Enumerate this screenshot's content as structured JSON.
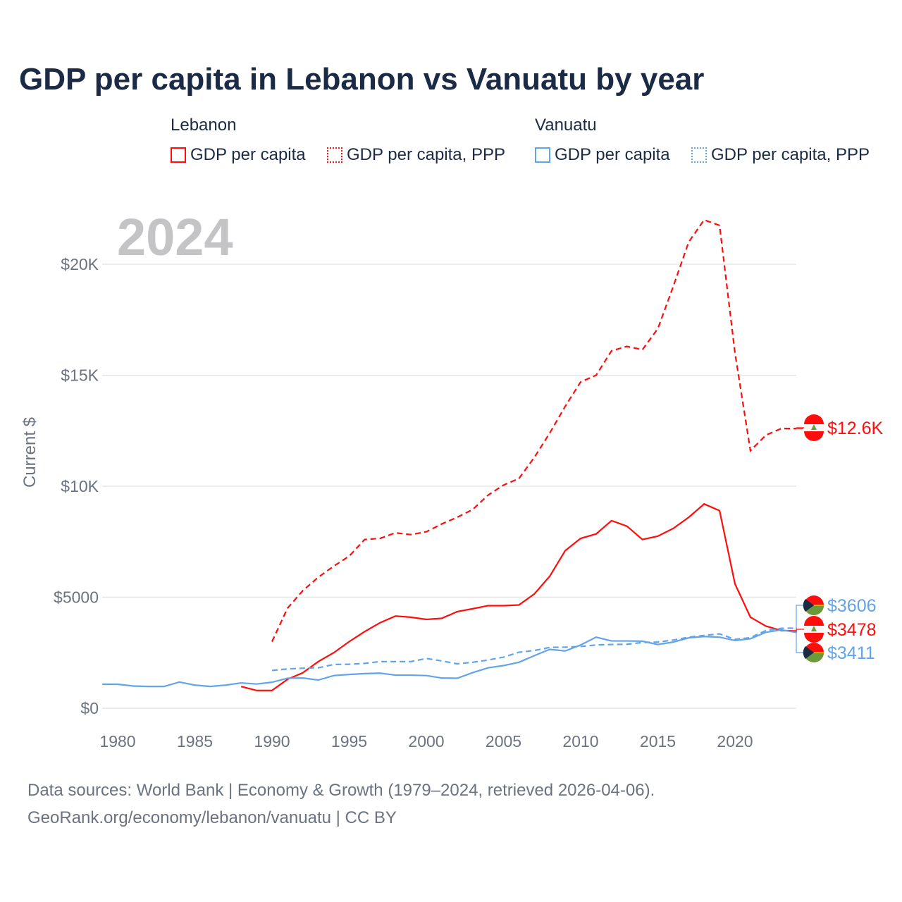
{
  "title": "GDP per capita in Lebanon vs Vanuatu by year",
  "legend": {
    "groups": [
      {
        "name": "Lebanon",
        "items": [
          {
            "label": "GDP per capita",
            "style": "solid"
          },
          {
            "label": "GDP per capita, PPP",
            "style": "dotted"
          }
        ],
        "color": "#ff0d0d"
      },
      {
        "name": "Vanuatu",
        "items": [
          {
            "label": "GDP per capita",
            "style": "solid"
          },
          {
            "label": "GDP per capita, PPP",
            "style": "dotted"
          }
        ],
        "color": "#63a4e8"
      }
    ]
  },
  "footer": {
    "line1": "Data sources: World Bank | Economy & Growth (1979–2024, retrieved 2026-04-06).",
    "line2": "GeoRank.org/economy/lebanon/vanuatu | CC BY"
  },
  "chart_data": {
    "type": "line",
    "title": "GDP per capita in Lebanon vs Vanuatu by year",
    "year_label": "2024",
    "ylabel": "Current $",
    "xlabel": "",
    "xlim": [
      1979,
      2024
    ],
    "ylim": [
      0,
      22500
    ],
    "x_ticks": [
      1980,
      1985,
      1990,
      1995,
      2000,
      2005,
      2010,
      2015,
      2020
    ],
    "y_ticks": [
      {
        "v": 0,
        "label": "$0"
      },
      {
        "v": 5000,
        "label": "$5000"
      },
      {
        "v": 10000,
        "label": "$10K"
      },
      {
        "v": 15000,
        "label": "$15K"
      },
      {
        "v": 20000,
        "label": "$20K"
      }
    ],
    "grid": true,
    "series": [
      {
        "name": "Lebanon GDP per capita",
        "color": "#ff0d0d",
        "dash": false,
        "start": 1988,
        "values": [
          980,
          800,
          800,
          1300,
          1600,
          2100,
          2500,
          3000,
          3450,
          3850,
          4150,
          4100,
          4000,
          4050,
          4350,
          4480,
          4620,
          4620,
          4650,
          5150,
          5950,
          7100,
          7650,
          7850,
          8450,
          8200,
          7600,
          7750,
          8100,
          8600,
          9200,
          8900,
          5600,
          4100,
          3700,
          3500,
          3478
        ],
        "end_label": "$3478"
      },
      {
        "name": "Lebanon GDP per capita, PPP",
        "color": "#ff0d0d",
        "dash": true,
        "start": 1990,
        "values": [
          3000,
          4500,
          5300,
          5900,
          6400,
          6850,
          7600,
          7650,
          7900,
          7820,
          7950,
          8300,
          8600,
          8950,
          9600,
          10050,
          10350,
          11300,
          12400,
          13600,
          14700,
          15000,
          16100,
          16300,
          16150,
          17100,
          19000,
          21000,
          22000,
          21750,
          16000,
          11600,
          12300,
          12600,
          12600
        ],
        "end_label": "$12.6K"
      },
      {
        "name": "Vanuatu GDP per capita",
        "color": "#63a4e8",
        "dash": false,
        "start": 1979,
        "values": [
          1080,
          1080,
          1000,
          980,
          980,
          1180,
          1040,
          980,
          1040,
          1140,
          1090,
          1170,
          1350,
          1360,
          1270,
          1470,
          1520,
          1560,
          1580,
          1490,
          1490,
          1470,
          1360,
          1350,
          1600,
          1820,
          1920,
          2070,
          2370,
          2650,
          2580,
          2850,
          3200,
          3030,
          3030,
          3020,
          2870,
          2980,
          3170,
          3230,
          3200,
          3050,
          3130,
          3420,
          3530,
          3411
        ],
        "end_label": "$3411"
      },
      {
        "name": "Vanuatu GDP per capita, PPP",
        "color": "#63a4e8",
        "dash": true,
        "start": 1990,
        "values": [
          1700,
          1770,
          1800,
          1820,
          1970,
          1980,
          2020,
          2100,
          2100,
          2100,
          2240,
          2130,
          2000,
          2070,
          2170,
          2300,
          2520,
          2600,
          2740,
          2750,
          2780,
          2850,
          2870,
          2880,
          2960,
          2980,
          3070,
          3200,
          3280,
          3350,
          3100,
          3180,
          3500,
          3600,
          3606
        ],
        "end_label": "$3606"
      }
    ]
  }
}
